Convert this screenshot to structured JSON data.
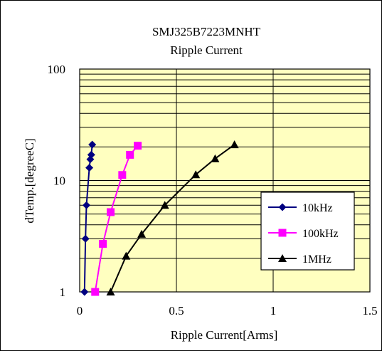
{
  "chart_data": {
    "type": "scatter",
    "title": "SMJ325B7223MNHT",
    "subtitle": "Ripple Current",
    "xlabel": "Ripple Current[Arms]",
    "ylabel": "dTemp.[degreeC]",
    "xlim": [
      0,
      1.5
    ],
    "ylim": [
      1,
      100
    ],
    "yscale": "log",
    "x_ticks": [
      "0",
      "0.5",
      "1",
      "1.5"
    ],
    "y_ticks": [
      "1",
      "10",
      "100"
    ],
    "grid": true,
    "legend_position": "right",
    "plot_background": "#ffffc0",
    "series": [
      {
        "name": "10kHz",
        "color": "#000080",
        "marker": "diamond",
        "x": [
          0.025,
          0.03,
          0.035,
          0.05,
          0.055,
          0.06,
          0.065
        ],
        "y": [
          1.0,
          3.0,
          6.0,
          13.0,
          15.5,
          17.0,
          21.0
        ]
      },
      {
        "name": "100kHz",
        "color": "#ff00ff",
        "marker": "square",
        "x": [
          0.08,
          0.12,
          0.16,
          0.22,
          0.26,
          0.3
        ],
        "y": [
          1.0,
          2.7,
          5.2,
          11.2,
          17.0,
          20.5
        ]
      },
      {
        "name": "1MHz",
        "color": "#000000",
        "marker": "triangle",
        "x": [
          0.16,
          0.24,
          0.32,
          0.44,
          0.6,
          0.7,
          0.8
        ],
        "y": [
          1.0,
          2.1,
          3.3,
          6.0,
          11.3,
          15.7,
          21.0
        ]
      }
    ]
  }
}
